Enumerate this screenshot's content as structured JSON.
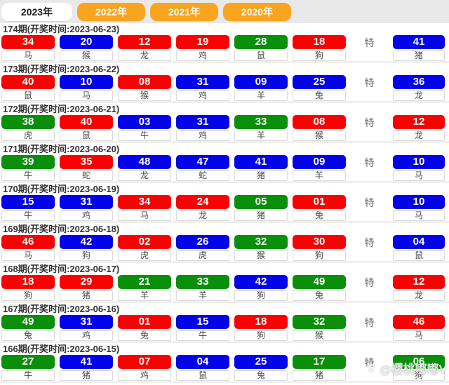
{
  "tabs": [
    {
      "label": "2023年",
      "active": true
    },
    {
      "label": "2022年",
      "active": false
    },
    {
      "label": "2021年",
      "active": false
    },
    {
      "label": "2020年",
      "active": false
    }
  ],
  "special_label": "特",
  "watermark": {
    "icon": "paw-icon",
    "text": "@樱桃嘟嘟V"
  },
  "colors": {
    "red": "#fa0101",
    "blue": "#0302e8",
    "green": "#0a8f0a",
    "tab_orange": "#f9a41f",
    "tabbar_bg": "#e9e9e9"
  },
  "periods": [
    {
      "title": "174期(开奖时间:2023-06-23)",
      "numbers": [
        {
          "num": "34",
          "color": "red",
          "animal": "马"
        },
        {
          "num": "20",
          "color": "blue",
          "animal": "猴"
        },
        {
          "num": "12",
          "color": "red",
          "animal": "龙"
        },
        {
          "num": "19",
          "color": "red",
          "animal": "鸡"
        },
        {
          "num": "28",
          "color": "green",
          "animal": "鼠"
        },
        {
          "num": "18",
          "color": "red",
          "animal": "狗"
        }
      ],
      "special": {
        "num": "41",
        "color": "blue",
        "animal": "猪"
      }
    },
    {
      "title": "173期(开奖时间:2023-06-22)",
      "numbers": [
        {
          "num": "40",
          "color": "red",
          "animal": "鼠"
        },
        {
          "num": "10",
          "color": "blue",
          "animal": "马"
        },
        {
          "num": "08",
          "color": "red",
          "animal": "猴"
        },
        {
          "num": "31",
          "color": "blue",
          "animal": "鸡"
        },
        {
          "num": "09",
          "color": "blue",
          "animal": "羊"
        },
        {
          "num": "25",
          "color": "blue",
          "animal": "兔"
        }
      ],
      "special": {
        "num": "36",
        "color": "blue",
        "animal": "龙"
      }
    },
    {
      "title": "172期(开奖时间:2023-06-21)",
      "numbers": [
        {
          "num": "38",
          "color": "green",
          "animal": "虎"
        },
        {
          "num": "40",
          "color": "red",
          "animal": "鼠"
        },
        {
          "num": "03",
          "color": "blue",
          "animal": "牛"
        },
        {
          "num": "31",
          "color": "blue",
          "animal": "鸡"
        },
        {
          "num": "33",
          "color": "green",
          "animal": "羊"
        },
        {
          "num": "08",
          "color": "red",
          "animal": "猴"
        }
      ],
      "special": {
        "num": "12",
        "color": "red",
        "animal": "龙"
      }
    },
    {
      "title": "171期(开奖时间:2023-06-20)",
      "numbers": [
        {
          "num": "39",
          "color": "green",
          "animal": "牛"
        },
        {
          "num": "35",
          "color": "red",
          "animal": "蛇"
        },
        {
          "num": "48",
          "color": "blue",
          "animal": "龙"
        },
        {
          "num": "47",
          "color": "blue",
          "animal": "蛇"
        },
        {
          "num": "41",
          "color": "blue",
          "animal": "猪"
        },
        {
          "num": "09",
          "color": "blue",
          "animal": "羊"
        }
      ],
      "special": {
        "num": "10",
        "color": "blue",
        "animal": "马"
      }
    },
    {
      "title": "170期(开奖时间:2023-06-19)",
      "numbers": [
        {
          "num": "15",
          "color": "blue",
          "animal": "牛"
        },
        {
          "num": "31",
          "color": "blue",
          "animal": "鸡"
        },
        {
          "num": "34",
          "color": "red",
          "animal": "马"
        },
        {
          "num": "24",
          "color": "red",
          "animal": "龙"
        },
        {
          "num": "05",
          "color": "green",
          "animal": "猪"
        },
        {
          "num": "01",
          "color": "red",
          "animal": "兔"
        }
      ],
      "special": {
        "num": "10",
        "color": "blue",
        "animal": "马"
      }
    },
    {
      "title": "169期(开奖时间:2023-06-18)",
      "numbers": [
        {
          "num": "46",
          "color": "red",
          "animal": "马"
        },
        {
          "num": "42",
          "color": "blue",
          "animal": "狗"
        },
        {
          "num": "02",
          "color": "red",
          "animal": "虎"
        },
        {
          "num": "26",
          "color": "blue",
          "animal": "虎"
        },
        {
          "num": "32",
          "color": "green",
          "animal": "猴"
        },
        {
          "num": "30",
          "color": "red",
          "animal": "狗"
        }
      ],
      "special": {
        "num": "04",
        "color": "blue",
        "animal": "鼠"
      }
    },
    {
      "title": "168期(开奖时间:2023-06-17)",
      "numbers": [
        {
          "num": "18",
          "color": "red",
          "animal": "狗"
        },
        {
          "num": "29",
          "color": "red",
          "animal": "猪"
        },
        {
          "num": "21",
          "color": "green",
          "animal": "羊"
        },
        {
          "num": "33",
          "color": "green",
          "animal": "羊"
        },
        {
          "num": "42",
          "color": "blue",
          "animal": "狗"
        },
        {
          "num": "49",
          "color": "green",
          "animal": "兔"
        }
      ],
      "special": {
        "num": "12",
        "color": "red",
        "animal": "龙"
      }
    },
    {
      "title": "167期(开奖时间:2023-06-16)",
      "numbers": [
        {
          "num": "49",
          "color": "green",
          "animal": "兔"
        },
        {
          "num": "31",
          "color": "blue",
          "animal": "鸡"
        },
        {
          "num": "01",
          "color": "red",
          "animal": "兔"
        },
        {
          "num": "15",
          "color": "blue",
          "animal": "牛"
        },
        {
          "num": "18",
          "color": "red",
          "animal": "狗"
        },
        {
          "num": "32",
          "color": "green",
          "animal": "猴"
        }
      ],
      "special": {
        "num": "46",
        "color": "red",
        "animal": "马"
      }
    },
    {
      "title": "166期(开奖时间:2023-06-15)",
      "numbers": [
        {
          "num": "27",
          "color": "green",
          "animal": "牛"
        },
        {
          "num": "41",
          "color": "blue",
          "animal": "猪"
        },
        {
          "num": "07",
          "color": "red",
          "animal": "鸡"
        },
        {
          "num": "04",
          "color": "blue",
          "animal": "鼠"
        },
        {
          "num": "25",
          "color": "blue",
          "animal": "兔"
        },
        {
          "num": "17",
          "color": "green",
          "animal": "猪"
        }
      ],
      "special": {
        "num": "06",
        "color": "green",
        "animal": "狗"
      }
    }
  ]
}
